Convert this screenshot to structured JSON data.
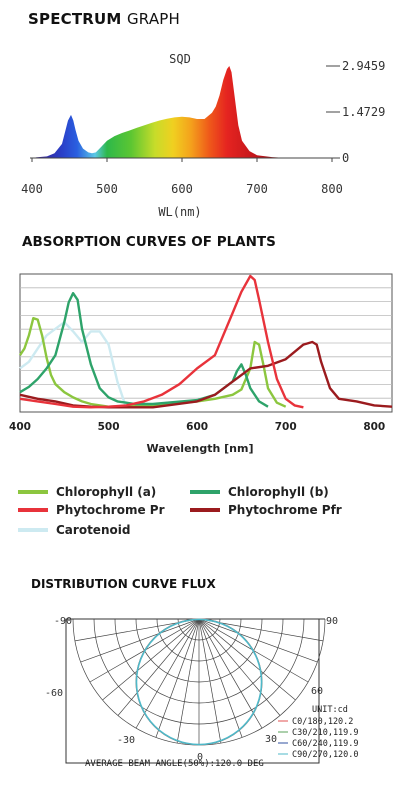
{
  "headings": {
    "spectrum_bold": "SPECTRUM",
    "spectrum_light": "GRAPH",
    "absorption": "ABSORPTION CURVES OF PLANTS",
    "distribution": "DISTRIBUTION CURVE FLUX"
  },
  "chart_data": [
    {
      "type": "area",
      "title": "SQD",
      "xlabel": "WL(nm)",
      "ylabel": "",
      "xlim": [
        400,
        800
      ],
      "ylim": [
        0,
        2.9459
      ],
      "x_ticks": [
        "400",
        "500",
        "600",
        "700",
        "800"
      ],
      "y_ticks": [
        "2.9459",
        "1.4729",
        "0"
      ],
      "series": [
        {
          "x": [
            405,
            420,
            430,
            440,
            448,
            452,
            455,
            458,
            462,
            468,
            475,
            480,
            485,
            490,
            500,
            510,
            520,
            530,
            540,
            550,
            560,
            570,
            580,
            590,
            600,
            610,
            620,
            630,
            640,
            645,
            650,
            655,
            660,
            663,
            666,
            670,
            675,
            680,
            690,
            700,
            720,
            740
          ],
          "y": [
            0.02,
            0.05,
            0.15,
            0.45,
            1.2,
            1.38,
            1.2,
            0.9,
            0.55,
            0.3,
            0.18,
            0.15,
            0.18,
            0.3,
            0.55,
            0.7,
            0.8,
            0.88,
            0.97,
            1.05,
            1.13,
            1.2,
            1.26,
            1.3,
            1.32,
            1.3,
            1.25,
            1.25,
            1.45,
            1.65,
            2.0,
            2.5,
            2.85,
            2.9459,
            2.75,
            2.0,
            1.05,
            0.55,
            0.22,
            0.09,
            0.03,
            0.0
          ]
        }
      ]
    },
    {
      "type": "line",
      "title": "",
      "xlabel": "Wavelength [nm]",
      "ylabel": "",
      "xlim": [
        400,
        820
      ],
      "ylim": [
        0,
        1
      ],
      "x_ticks": [
        "400",
        "500",
        "600",
        "700",
        "800"
      ],
      "grid": true,
      "series": [
        {
          "name": "Chlorophyll (a)",
          "color": "#8cc63f",
          "x": [
            400,
            405,
            410,
            415,
            420,
            425,
            430,
            435,
            440,
            450,
            460,
            470,
            480,
            500,
            550,
            600,
            620,
            640,
            650,
            660,
            665,
            670,
            675,
            680,
            690,
            700
          ],
          "y": [
            0.4,
            0.45,
            0.55,
            0.68,
            0.67,
            0.55,
            0.38,
            0.25,
            0.18,
            0.12,
            0.08,
            0.05,
            0.03,
            0.01,
            0.02,
            0.05,
            0.07,
            0.1,
            0.14,
            0.3,
            0.5,
            0.48,
            0.32,
            0.15,
            0.04,
            0.01
          ]
        },
        {
          "name": "Chlorophyll (b)",
          "color": "#2ea36a",
          "x": [
            400,
            410,
            420,
            430,
            440,
            450,
            455,
            460,
            465,
            470,
            480,
            490,
            500,
            510,
            520,
            530,
            550,
            600,
            620,
            640,
            645,
            650,
            655,
            660,
            670,
            680
          ],
          "y": [
            0.12,
            0.16,
            0.22,
            0.3,
            0.4,
            0.65,
            0.8,
            0.87,
            0.82,
            0.6,
            0.33,
            0.15,
            0.08,
            0.05,
            0.04,
            0.03,
            0.03,
            0.06,
            0.1,
            0.2,
            0.28,
            0.33,
            0.25,
            0.15,
            0.05,
            0.01
          ]
        },
        {
          "name": "Phytochrome Pr",
          "color": "#e8333b",
          "x": [
            400,
            420,
            440,
            460,
            480,
            500,
            520,
            540,
            560,
            580,
            600,
            620,
            640,
            650,
            660,
            665,
            670,
            680,
            690,
            700,
            710,
            720
          ],
          "y": [
            0.07,
            0.05,
            0.03,
            0.01,
            0.005,
            0.01,
            0.02,
            0.05,
            0.1,
            0.18,
            0.3,
            0.4,
            0.72,
            0.88,
            1.0,
            0.97,
            0.82,
            0.5,
            0.22,
            0.07,
            0.02,
            0.005
          ]
        },
        {
          "name": "Phytochrome Pfr",
          "color": "#9b1b1e",
          "x": [
            400,
            420,
            440,
            460,
            480,
            500,
            550,
            600,
            620,
            640,
            660,
            680,
            700,
            720,
            730,
            735,
            740,
            750,
            760,
            780,
            800,
            820
          ],
          "y": [
            0.1,
            0.07,
            0.05,
            0.02,
            0.01,
            0.005,
            0.005,
            0.05,
            0.1,
            0.2,
            0.3,
            0.32,
            0.37,
            0.48,
            0.5,
            0.48,
            0.35,
            0.15,
            0.07,
            0.05,
            0.02,
            0.01
          ]
        },
        {
          "name": "Carotenoid",
          "color": "#cdeaf1",
          "x": [
            400,
            410,
            420,
            430,
            440,
            450,
            460,
            470,
            480,
            490,
            500,
            510,
            520
          ],
          "y": [
            0.3,
            0.35,
            0.45,
            0.55,
            0.6,
            0.65,
            0.58,
            0.5,
            0.58,
            0.58,
            0.48,
            0.2,
            0.0
          ]
        }
      ]
    },
    {
      "type": "polar",
      "angle_labels": [
        "-90",
        "90",
        "-60",
        "60",
        "-30",
        "30",
        "0"
      ],
      "legend_title": "UNIT:cd",
      "series": [
        {
          "name": "C0/180,120.2",
          "color": "#e05050",
          "beam_angle": 120.2
        },
        {
          "name": "C30/210,119.9",
          "color": "#5aa05a",
          "beam_angle": 119.9
        },
        {
          "name": "C60/240,119.9",
          "color": "#3050a0",
          "beam_angle": 119.9
        },
        {
          "name": "C90/270,120.0",
          "color": "#4fb8c8",
          "beam_angle": 120.0
        }
      ],
      "footer": "AVERAGE BEAM ANGLE(50%):120.0 DEG"
    }
  ]
}
